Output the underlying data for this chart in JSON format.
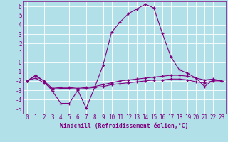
{
  "xlabel": "Windchill (Refroidissement éolien,°C)",
  "bg_color": "#b2e0e8",
  "grid_color": "#ffffff",
  "line_color": "#800080",
  "hours": [
    0,
    1,
    2,
    3,
    4,
    5,
    6,
    7,
    8,
    9,
    10,
    11,
    12,
    13,
    14,
    15,
    16,
    17,
    18,
    19,
    20,
    21,
    22,
    23
  ],
  "line1": [
    -2.0,
    -1.4,
    -2.0,
    -3.1,
    -4.4,
    -4.4,
    -3.0,
    -4.9,
    -2.7,
    -0.3,
    3.2,
    4.3,
    5.2,
    5.7,
    6.2,
    5.8,
    3.1,
    0.6,
    -0.8,
    -1.2,
    -1.7,
    -2.6,
    -1.9,
    -2.0
  ],
  "line2": [
    -2.0,
    -1.5,
    -2.0,
    -2.8,
    -2.7,
    -2.7,
    -2.8,
    -2.7,
    -2.6,
    -2.4,
    -2.2,
    -2.0,
    -1.9,
    -1.8,
    -1.7,
    -1.6,
    -1.5,
    -1.4,
    -1.4,
    -1.5,
    -1.7,
    -1.9,
    -1.8,
    -2.0
  ],
  "line3": [
    -2.0,
    -1.7,
    -2.2,
    -2.9,
    -2.8,
    -2.8,
    -2.9,
    -2.8,
    -2.7,
    -2.6,
    -2.4,
    -2.3,
    -2.2,
    -2.1,
    -2.0,
    -1.9,
    -1.9,
    -1.8,
    -1.8,
    -1.9,
    -2.1,
    -2.2,
    -2.0,
    -2.0
  ],
  "ylim": [
    -5.5,
    6.5
  ],
  "yticks": [
    -5,
    -4,
    -3,
    -2,
    -1,
    0,
    1,
    2,
    3,
    4,
    5,
    6
  ],
  "xlim": [
    -0.5,
    23.5
  ],
  "tick_fontsize": 5.5,
  "xlabel_fontsize": 5.8
}
